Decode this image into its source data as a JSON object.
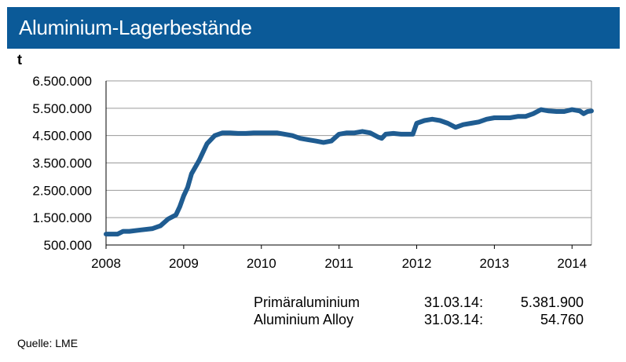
{
  "title": "Aluminium-Lagerbestände",
  "unit": "t",
  "legend": [
    {
      "name": "Primäraluminium",
      "date": "31.03.14:",
      "value": "5.381.900"
    },
    {
      "name": "Aluminium Alloy",
      "date": "31.03.14:",
      "value": "54.760"
    }
  ],
  "source": "Quelle: LME",
  "colors": {
    "title_bar": "#0b5a98",
    "line": "#1f5c91"
  },
  "chart_data": {
    "type": "line",
    "ylim": [
      500000,
      6500000
    ],
    "yticks": [
      500000,
      1500000,
      2500000,
      3500000,
      4500000,
      5500000,
      6500000
    ],
    "ytick_labels": [
      "500.000",
      "1.500.000",
      "2.500.000",
      "3.500.000",
      "4.500.000",
      "5.500.000",
      "6.500.000"
    ],
    "xlim": [
      2008.0,
      2014.25
    ],
    "xticks": [
      2008,
      2009,
      2010,
      2011,
      2012,
      2013,
      2014
    ],
    "xtick_labels": [
      "2008",
      "2009",
      "2010",
      "2011",
      "2012",
      "2013",
      "2014"
    ],
    "grid": "horizontal",
    "series": [
      {
        "x": [
          2008.0,
          2008.15,
          2008.22,
          2008.3,
          2008.45,
          2008.6,
          2008.7,
          2008.8,
          2008.9,
          2008.95,
          2009.0,
          2009.05,
          2009.1,
          2009.2,
          2009.3,
          2009.4,
          2009.5,
          2009.6,
          2009.7,
          2009.8,
          2009.9,
          2010.0,
          2010.1,
          2010.2,
          2010.3,
          2010.4,
          2010.5,
          2010.6,
          2010.7,
          2010.8,
          2010.9,
          2011.0,
          2011.1,
          2011.2,
          2011.3,
          2011.4,
          2011.5,
          2011.55,
          2011.6,
          2011.7,
          2011.8,
          2011.95,
          2012.0,
          2012.1,
          2012.2,
          2012.3,
          2012.4,
          2012.5,
          2012.6,
          2012.7,
          2012.8,
          2012.9,
          2013.0,
          2013.1,
          2013.2,
          2013.3,
          2013.4,
          2013.5,
          2013.6,
          2013.7,
          2013.8,
          2013.9,
          2014.0,
          2014.1,
          2014.15,
          2014.2,
          2014.25
        ],
        "values": [
          900000,
          900000,
          1000000,
          1000000,
          1050000,
          1100000,
          1200000,
          1450000,
          1600000,
          1900000,
          2300000,
          2600000,
          3100000,
          3600000,
          4200000,
          4500000,
          4600000,
          4600000,
          4580000,
          4580000,
          4600000,
          4600000,
          4600000,
          4600000,
          4550000,
          4500000,
          4400000,
          4350000,
          4300000,
          4250000,
          4300000,
          4550000,
          4600000,
          4600000,
          4650000,
          4600000,
          4450000,
          4400000,
          4550000,
          4580000,
          4550000,
          4550000,
          4950000,
          5050000,
          5100000,
          5050000,
          4950000,
          4800000,
          4900000,
          4950000,
          5000000,
          5100000,
          5150000,
          5150000,
          5150000,
          5200000,
          5200000,
          5300000,
          5450000,
          5400000,
          5380000,
          5380000,
          5450000,
          5400000,
          5300000,
          5380000,
          5400000
        ]
      }
    ]
  }
}
